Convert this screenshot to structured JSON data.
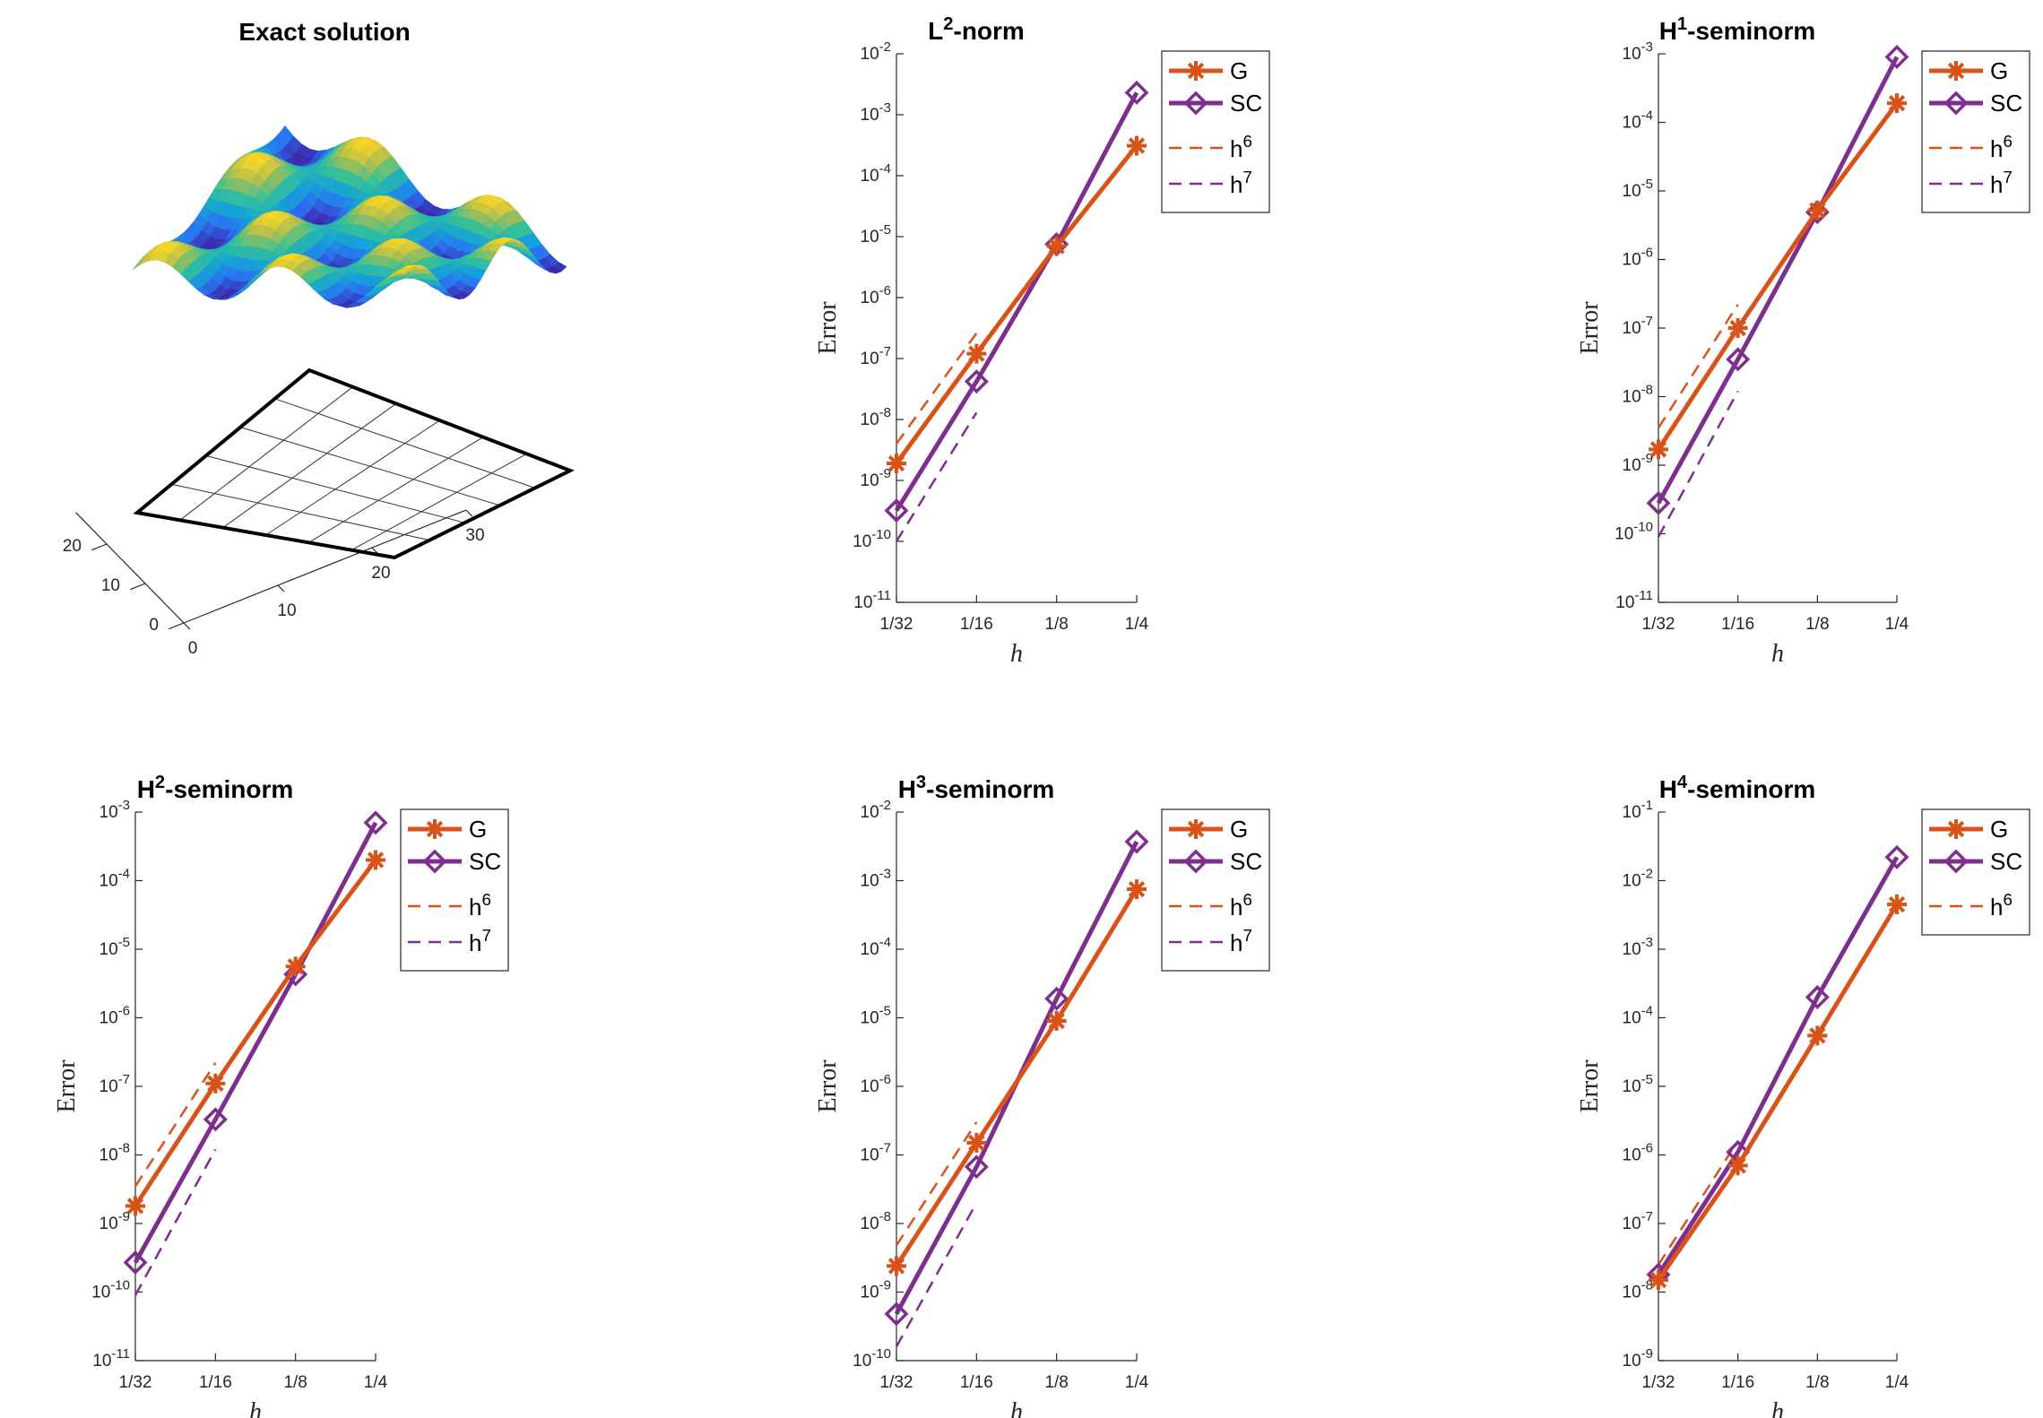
{
  "colors": {
    "G": "#D95319",
    "SC": "#7E2F8E",
    "axis": "#262626"
  },
  "surface_panel": {
    "title": "Exact solution",
    "y_ticks": [
      "0",
      "10",
      "20"
    ],
    "x_ticks": [
      "0",
      "10",
      "20",
      "30"
    ]
  },
  "chart_data": [
    {
      "type": "line",
      "title_base": "L",
      "title_sup": "2",
      "title_rest": "-norm",
      "xlabel": "h",
      "ylabel": "Error",
      "x": [
        "1/32",
        "1/16",
        "1/8",
        "1/4"
      ],
      "yexp": [
        -11,
        -2
      ],
      "series": [
        {
          "name": "G",
          "values": [
            1.9e-09,
            1.2e-07,
            7e-06,
            0.00031
          ]
        },
        {
          "name": "SC",
          "values": [
            3.2e-10,
            4.2e-08,
            7.5e-06,
            0.0023
          ]
        }
      ],
      "refs": [
        {
          "name": "h",
          "sup": "6",
          "series": "G",
          "start": 4e-09,
          "end": 2.6e-07
        },
        {
          "name": "h",
          "sup": "7",
          "series": "SC",
          "start": 1e-10,
          "end": 1.3e-08
        }
      ]
    },
    {
      "type": "line",
      "title_base": "H",
      "title_sup": "1",
      "title_rest": "-seminorm",
      "xlabel": "h",
      "ylabel": "Error",
      "x": [
        "1/32",
        "1/16",
        "1/8",
        "1/4"
      ],
      "yexp": [
        -11,
        -3
      ],
      "series": [
        {
          "name": "G",
          "values": [
            1.7e-09,
            1e-07,
            5.2e-06,
            0.00019
          ]
        },
        {
          "name": "SC",
          "values": [
            2.8e-10,
            3.5e-08,
            4.9e-06,
            0.0009
          ]
        }
      ],
      "refs": [
        {
          "name": "h",
          "sup": "6",
          "series": "G",
          "start": 3.5e-09,
          "end": 2.2e-07
        },
        {
          "name": "h",
          "sup": "7",
          "series": "SC",
          "start": 9e-11,
          "end": 1.2e-08
        }
      ]
    },
    {
      "type": "line",
      "title_base": "H",
      "title_sup": "2",
      "title_rest": "-seminorm",
      "xlabel": "h",
      "ylabel": "Error",
      "x": [
        "1/32",
        "1/16",
        "1/8",
        "1/4"
      ],
      "yexp": [
        -11,
        -3
      ],
      "series": [
        {
          "name": "G",
          "values": [
            1.8e-09,
            1.1e-07,
            5.6e-06,
            0.0002
          ]
        },
        {
          "name": "SC",
          "values": [
            2.7e-10,
            3.3e-08,
            4.3e-06,
            0.0007
          ]
        }
      ],
      "refs": [
        {
          "name": "h",
          "sup": "6",
          "series": "G",
          "start": 3.5e-09,
          "end": 2.2e-07
        },
        {
          "name": "h",
          "sup": "7",
          "series": "SC",
          "start": 9e-11,
          "end": 1.2e-08
        }
      ]
    },
    {
      "type": "line",
      "title_base": "H",
      "title_sup": "3",
      "title_rest": "-seminorm",
      "xlabel": "h",
      "ylabel": "Error",
      "x": [
        "1/32",
        "1/16",
        "1/8",
        "1/4"
      ],
      "yexp": [
        -10,
        -2
      ],
      "series": [
        {
          "name": "G",
          "values": [
            2.4e-09,
            1.5e-07,
            9e-06,
            0.00075
          ]
        },
        {
          "name": "SC",
          "values": [
            4.8e-10,
            6.7e-08,
            1.9e-05,
            0.0037
          ]
        }
      ],
      "refs": [
        {
          "name": "h",
          "sup": "6",
          "series": "G",
          "start": 4.8e-09,
          "end": 3e-07
        },
        {
          "name": "h",
          "sup": "7",
          "series": "SC",
          "start": 1.6e-10,
          "end": 2e-08
        }
      ]
    },
    {
      "type": "line",
      "title_base": "H",
      "title_sup": "4",
      "title_rest": "-seminorm",
      "xlabel": "h",
      "ylabel": "Error",
      "x": [
        "1/32",
        "1/16",
        "1/8",
        "1/4"
      ],
      "yexp": [
        -9,
        -1
      ],
      "series": [
        {
          "name": "G",
          "values": [
            1.5e-08,
            7e-07,
            5.5e-05,
            0.0045
          ]
        },
        {
          "name": "SC",
          "values": [
            1.8e-08,
            1.1e-06,
            0.0002,
            0.022
          ]
        }
      ],
      "refs": [
        {
          "name": "h",
          "sup": "6",
          "series": "G",
          "start": 2.5e-08,
          "end": 1.6e-06
        }
      ]
    }
  ]
}
